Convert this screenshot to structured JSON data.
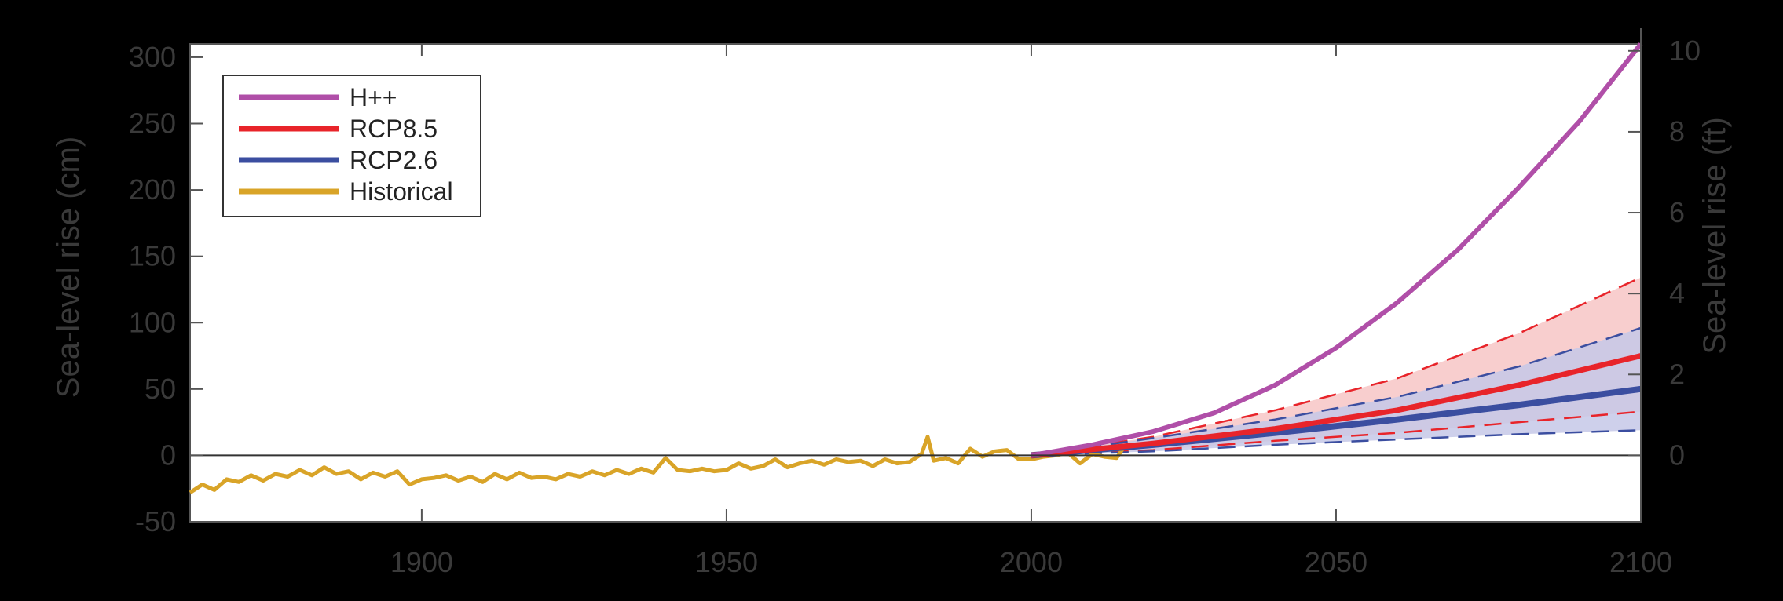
{
  "chart_data": {
    "type": "line",
    "xlim": [
      1862,
      2100
    ],
    "ylim": [
      -50,
      310
    ],
    "y2lim_ft": [
      -1.64,
      10.17
    ],
    "ylabel": "Sea-level rise (cm)",
    "y2label": "Sea-level rise (ft)",
    "x_ticks": [
      1900,
      1950,
      2000,
      2050,
      2100
    ],
    "y_ticks": [
      -50,
      0,
      50,
      100,
      150,
      200,
      250,
      300
    ],
    "y2_ticks": [
      0,
      2,
      4,
      6,
      8,
      10
    ],
    "grid": false,
    "legend_position": "top-left",
    "colors": {
      "hpp": "#b04fa8",
      "rcp85": "#e8242a",
      "rcp26": "#3b4ea0",
      "historical": "#d9a428",
      "rcp85_band": "#f7c9c9",
      "rcp26_band": "#c5c8e8"
    },
    "legend": [
      "H++",
      "RCP8.5",
      "RCP2.6",
      "Historical"
    ],
    "series": [
      {
        "name": "H++",
        "x": [
          2000,
          2010,
          2020,
          2030,
          2040,
          2050,
          2060,
          2070,
          2080,
          2090,
          2100
        ],
        "y": [
          0,
          8,
          18,
          32,
          53,
          81,
          115,
          155,
          202,
          252,
          310
        ]
      },
      {
        "name": "RCP8.5",
        "x": [
          2000,
          2020,
          2040,
          2060,
          2080,
          2100
        ],
        "y": [
          0,
          9,
          20,
          34,
          53,
          75
        ],
        "low": [
          0,
          4,
          11,
          17,
          25,
          33
        ],
        "high": [
          0,
          14,
          34,
          58,
          92,
          134
        ]
      },
      {
        "name": "RCP2.6",
        "x": [
          2000,
          2020,
          2040,
          2060,
          2080,
          2100
        ],
        "y": [
          0,
          8,
          17,
          27,
          38,
          50
        ],
        "low": [
          0,
          3,
          8,
          12,
          16,
          19
        ],
        "high": [
          0,
          13,
          27,
          44,
          67,
          96
        ]
      },
      {
        "name": "Historical",
        "x": [
          1862,
          1864,
          1866,
          1868,
          1870,
          1872,
          1874,
          1876,
          1878,
          1880,
          1882,
          1884,
          1886,
          1888,
          1890,
          1892,
          1894,
          1896,
          1898,
          1900,
          1902,
          1904,
          1906,
          1908,
          1910,
          1912,
          1914,
          1916,
          1918,
          1920,
          1922,
          1924,
          1926,
          1928,
          1930,
          1932,
          1934,
          1936,
          1938,
          1940,
          1942,
          1944,
          1946,
          1948,
          1950,
          1952,
          1954,
          1956,
          1958,
          1960,
          1962,
          1964,
          1966,
          1968,
          1970,
          1972,
          1974,
          1976,
          1978,
          1980,
          1982,
          1983,
          1984,
          1986,
          1988,
          1990,
          1992,
          1994,
          1996,
          1998,
          2000,
          2002,
          2004,
          2006,
          2008,
          2010,
          2012,
          2014,
          2015
        ],
        "y": [
          -28,
          -22,
          -26,
          -18,
          -20,
          -15,
          -19,
          -14,
          -16,
          -11,
          -15,
          -9,
          -14,
          -12,
          -18,
          -13,
          -16,
          -12,
          -22,
          -18,
          -17,
          -15,
          -19,
          -16,
          -20,
          -14,
          -18,
          -13,
          -17,
          -16,
          -18,
          -14,
          -16,
          -12,
          -15,
          -11,
          -14,
          -10,
          -13,
          -2,
          -11,
          -12,
          -10,
          -12,
          -11,
          -6,
          -10,
          -8,
          -3,
          -9,
          -6,
          -4,
          -7,
          -3,
          -5,
          -4,
          -8,
          -3,
          -6,
          -5,
          1,
          14,
          -4,
          -2,
          -6,
          5,
          -1,
          3,
          4,
          -3,
          -3,
          -1,
          0,
          2,
          -6,
          1,
          -1,
          -2,
          5
        ]
      }
    ]
  }
}
